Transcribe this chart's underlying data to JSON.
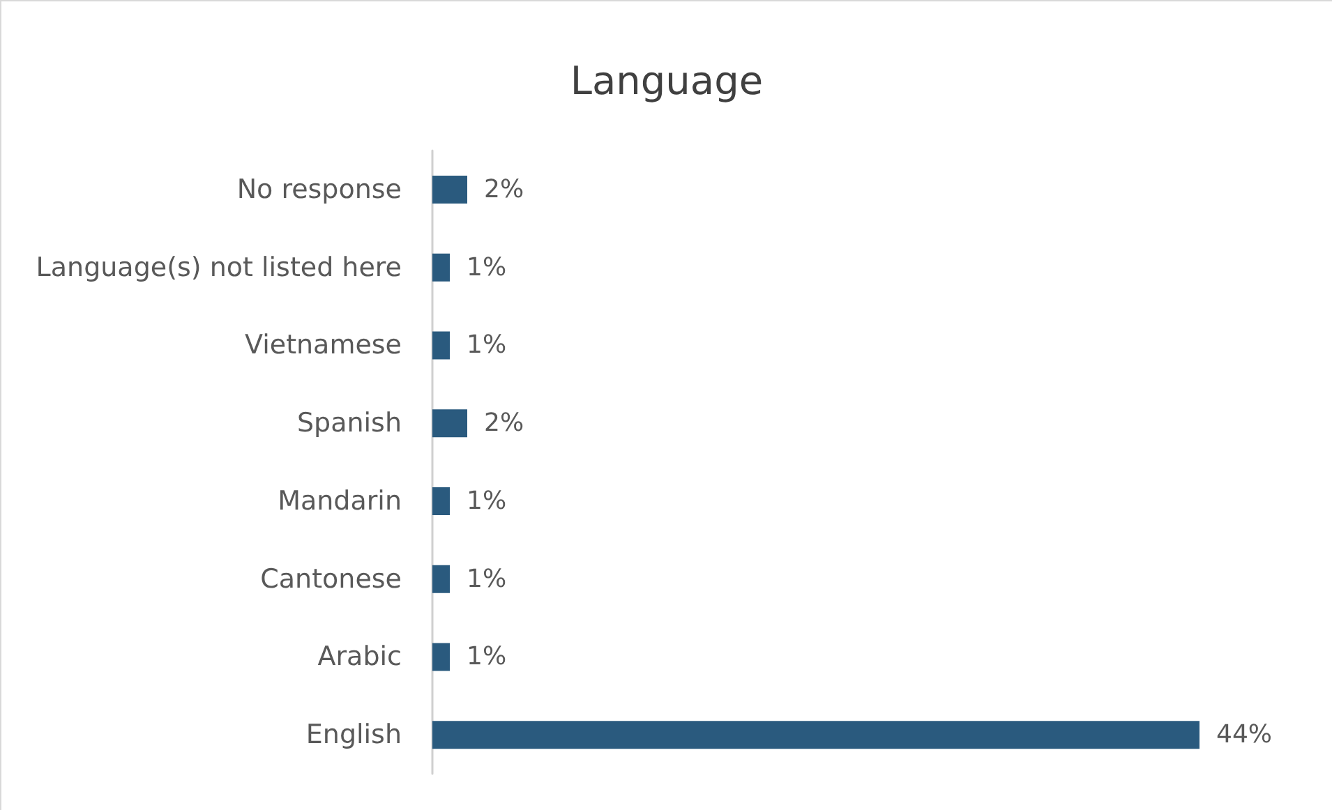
{
  "chart_data": {
    "type": "bar",
    "orientation": "horizontal",
    "title": "Language",
    "categories": [
      "No response",
      "Language(s) not listed here",
      "Vietnamese",
      "Spanish",
      "Mandarin",
      "Cantonese",
      "Arabic",
      "English"
    ],
    "values": [
      2,
      1,
      1,
      2,
      1,
      1,
      1,
      44
    ],
    "value_labels": [
      "2%",
      "1%",
      "1%",
      "2%",
      "1%",
      "1%",
      "1%",
      "44%"
    ],
    "color": "#2a5a7e",
    "tick_labels": "y"
  }
}
